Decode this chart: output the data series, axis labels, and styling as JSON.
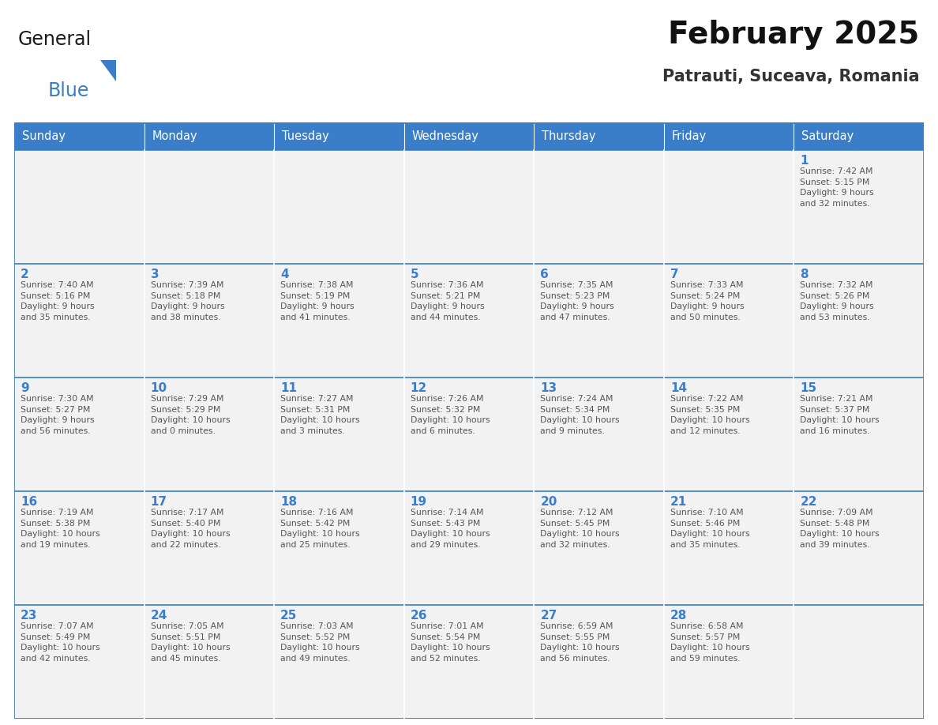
{
  "title": "February 2025",
  "subtitle": "Patrauti, Suceava, Romania",
  "header_bg": "#3A7DC9",
  "header_text": "#FFFFFF",
  "cell_bg": "#F2F2F2",
  "day_number_color": "#3A7DC9",
  "text_color": "#555555",
  "line_color": "#3A7DC9",
  "days_of_week": [
    "Sunday",
    "Monday",
    "Tuesday",
    "Wednesday",
    "Thursday",
    "Friday",
    "Saturday"
  ],
  "weeks": [
    [
      {
        "day": null,
        "info": null
      },
      {
        "day": null,
        "info": null
      },
      {
        "day": null,
        "info": null
      },
      {
        "day": null,
        "info": null
      },
      {
        "day": null,
        "info": null
      },
      {
        "day": null,
        "info": null
      },
      {
        "day": 1,
        "info": "Sunrise: 7:42 AM\nSunset: 5:15 PM\nDaylight: 9 hours\nand 32 minutes."
      }
    ],
    [
      {
        "day": 2,
        "info": "Sunrise: 7:40 AM\nSunset: 5:16 PM\nDaylight: 9 hours\nand 35 minutes."
      },
      {
        "day": 3,
        "info": "Sunrise: 7:39 AM\nSunset: 5:18 PM\nDaylight: 9 hours\nand 38 minutes."
      },
      {
        "day": 4,
        "info": "Sunrise: 7:38 AM\nSunset: 5:19 PM\nDaylight: 9 hours\nand 41 minutes."
      },
      {
        "day": 5,
        "info": "Sunrise: 7:36 AM\nSunset: 5:21 PM\nDaylight: 9 hours\nand 44 minutes."
      },
      {
        "day": 6,
        "info": "Sunrise: 7:35 AM\nSunset: 5:23 PM\nDaylight: 9 hours\nand 47 minutes."
      },
      {
        "day": 7,
        "info": "Sunrise: 7:33 AM\nSunset: 5:24 PM\nDaylight: 9 hours\nand 50 minutes."
      },
      {
        "day": 8,
        "info": "Sunrise: 7:32 AM\nSunset: 5:26 PM\nDaylight: 9 hours\nand 53 minutes."
      }
    ],
    [
      {
        "day": 9,
        "info": "Sunrise: 7:30 AM\nSunset: 5:27 PM\nDaylight: 9 hours\nand 56 minutes."
      },
      {
        "day": 10,
        "info": "Sunrise: 7:29 AM\nSunset: 5:29 PM\nDaylight: 10 hours\nand 0 minutes."
      },
      {
        "day": 11,
        "info": "Sunrise: 7:27 AM\nSunset: 5:31 PM\nDaylight: 10 hours\nand 3 minutes."
      },
      {
        "day": 12,
        "info": "Sunrise: 7:26 AM\nSunset: 5:32 PM\nDaylight: 10 hours\nand 6 minutes."
      },
      {
        "day": 13,
        "info": "Sunrise: 7:24 AM\nSunset: 5:34 PM\nDaylight: 10 hours\nand 9 minutes."
      },
      {
        "day": 14,
        "info": "Sunrise: 7:22 AM\nSunset: 5:35 PM\nDaylight: 10 hours\nand 12 minutes."
      },
      {
        "day": 15,
        "info": "Sunrise: 7:21 AM\nSunset: 5:37 PM\nDaylight: 10 hours\nand 16 minutes."
      }
    ],
    [
      {
        "day": 16,
        "info": "Sunrise: 7:19 AM\nSunset: 5:38 PM\nDaylight: 10 hours\nand 19 minutes."
      },
      {
        "day": 17,
        "info": "Sunrise: 7:17 AM\nSunset: 5:40 PM\nDaylight: 10 hours\nand 22 minutes."
      },
      {
        "day": 18,
        "info": "Sunrise: 7:16 AM\nSunset: 5:42 PM\nDaylight: 10 hours\nand 25 minutes."
      },
      {
        "day": 19,
        "info": "Sunrise: 7:14 AM\nSunset: 5:43 PM\nDaylight: 10 hours\nand 29 minutes."
      },
      {
        "day": 20,
        "info": "Sunrise: 7:12 AM\nSunset: 5:45 PM\nDaylight: 10 hours\nand 32 minutes."
      },
      {
        "day": 21,
        "info": "Sunrise: 7:10 AM\nSunset: 5:46 PM\nDaylight: 10 hours\nand 35 minutes."
      },
      {
        "day": 22,
        "info": "Sunrise: 7:09 AM\nSunset: 5:48 PM\nDaylight: 10 hours\nand 39 minutes."
      }
    ],
    [
      {
        "day": 23,
        "info": "Sunrise: 7:07 AM\nSunset: 5:49 PM\nDaylight: 10 hours\nand 42 minutes."
      },
      {
        "day": 24,
        "info": "Sunrise: 7:05 AM\nSunset: 5:51 PM\nDaylight: 10 hours\nand 45 minutes."
      },
      {
        "day": 25,
        "info": "Sunrise: 7:03 AM\nSunset: 5:52 PM\nDaylight: 10 hours\nand 49 minutes."
      },
      {
        "day": 26,
        "info": "Sunrise: 7:01 AM\nSunset: 5:54 PM\nDaylight: 10 hours\nand 52 minutes."
      },
      {
        "day": 27,
        "info": "Sunrise: 6:59 AM\nSunset: 5:55 PM\nDaylight: 10 hours\nand 56 minutes."
      },
      {
        "day": 28,
        "info": "Sunrise: 6:58 AM\nSunset: 5:57 PM\nDaylight: 10 hours\nand 59 minutes."
      },
      {
        "day": null,
        "info": null
      }
    ]
  ]
}
